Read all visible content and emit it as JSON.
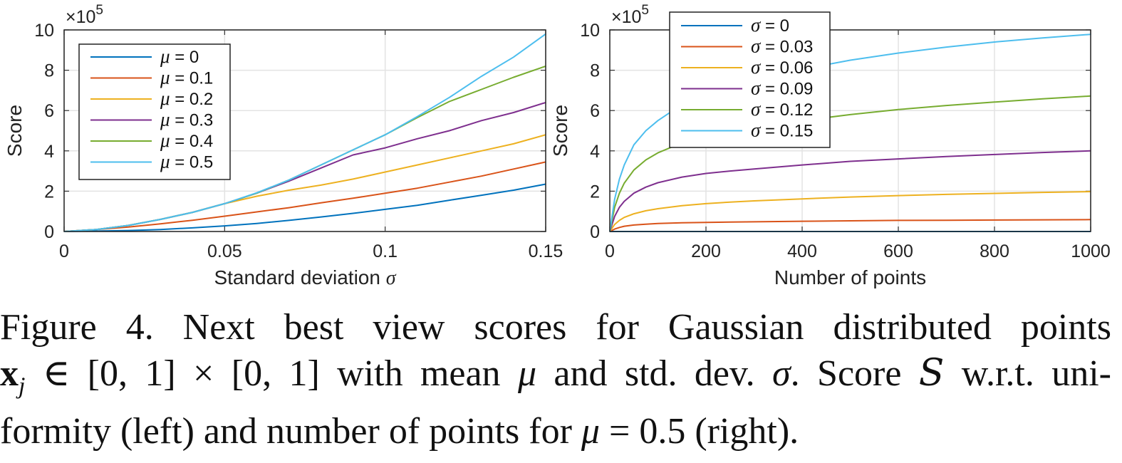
{
  "chart_data": [
    {
      "type": "line",
      "xlabel": "Standard deviation σ",
      "ylabel": "Score",
      "exponent_label": "×10^5",
      "xlim": [
        0,
        0.15
      ],
      "ylim": [
        0,
        10
      ],
      "xticks": [
        "0",
        "0.05",
        "0.1",
        "0.15"
      ],
      "yticks": [
        "0",
        "2",
        "4",
        "6",
        "8",
        "10"
      ],
      "grid": true,
      "legend_placement": "top-left",
      "x": [
        0,
        0.01,
        0.02,
        0.03,
        0.04,
        0.05,
        0.06,
        0.07,
        0.08,
        0.09,
        0.1,
        0.11,
        0.12,
        0.13,
        0.14,
        0.15
      ],
      "series": [
        {
          "name": "μ = 0",
          "color": "#0072BD",
          "values": [
            0,
            0.02,
            0.05,
            0.1,
            0.18,
            0.28,
            0.4,
            0.55,
            0.72,
            0.9,
            1.1,
            1.3,
            1.55,
            1.8,
            2.05,
            2.35
          ]
        },
        {
          "name": "μ = 0.1",
          "color": "#D95319",
          "values": [
            0,
            0.1,
            0.22,
            0.38,
            0.56,
            0.76,
            0.97,
            1.18,
            1.42,
            1.65,
            1.9,
            2.15,
            2.45,
            2.75,
            3.1,
            3.45
          ]
        },
        {
          "name": "μ = 0.2",
          "color": "#EDB120",
          "values": [
            0,
            0.1,
            0.3,
            0.6,
            0.95,
            1.38,
            1.75,
            2.05,
            2.3,
            2.6,
            2.95,
            3.3,
            3.65,
            4.0,
            4.35,
            4.8
          ]
        },
        {
          "name": "μ = 0.3",
          "color": "#7E2F8E",
          "values": [
            0,
            0.1,
            0.3,
            0.6,
            0.95,
            1.38,
            1.9,
            2.5,
            3.15,
            3.8,
            4.15,
            4.6,
            5.0,
            5.5,
            5.9,
            6.4
          ]
        },
        {
          "name": "μ = 0.4",
          "color": "#77AC30",
          "values": [
            0,
            0.1,
            0.3,
            0.6,
            0.95,
            1.38,
            1.9,
            2.55,
            3.3,
            4.05,
            4.8,
            5.65,
            6.45,
            7.05,
            7.65,
            8.2
          ]
        },
        {
          "name": "μ = 0.5",
          "color": "#4DBEEE",
          "values": [
            0,
            0.1,
            0.3,
            0.6,
            0.95,
            1.38,
            1.92,
            2.55,
            3.3,
            4.05,
            4.8,
            5.7,
            6.65,
            7.7,
            8.65,
            9.8
          ]
        }
      ]
    },
    {
      "type": "line",
      "xlabel": "Number of points",
      "ylabel": "Score",
      "exponent_label": "×10^5",
      "xlim": [
        0,
        1000
      ],
      "ylim": [
        0,
        10
      ],
      "xticks": [
        "0",
        "200",
        "400",
        "600",
        "800",
        "1000"
      ],
      "yticks": [
        "0",
        "2",
        "4",
        "6",
        "8",
        "10"
      ],
      "grid": true,
      "legend_placement": "top-left",
      "x": [
        0,
        10,
        20,
        30,
        50,
        75,
        100,
        150,
        200,
        250,
        300,
        400,
        500,
        600,
        700,
        800,
        900,
        1000
      ],
      "series": [
        {
          "name": "σ = 0",
          "color": "#0072BD",
          "values": [
            0,
            0,
            0,
            0,
            0,
            0,
            0,
            0,
            0,
            0,
            0,
            0,
            0,
            0,
            0,
            0,
            0,
            0
          ]
        },
        {
          "name": "σ = 0.03",
          "color": "#D95319",
          "values": [
            0,
            0.12,
            0.2,
            0.26,
            0.32,
            0.36,
            0.4,
            0.43,
            0.45,
            0.47,
            0.48,
            0.51,
            0.53,
            0.55,
            0.56,
            0.57,
            0.58,
            0.59
          ]
        },
        {
          "name": "σ = 0.06",
          "color": "#EDB120",
          "values": [
            0,
            0.35,
            0.55,
            0.7,
            0.88,
            1.03,
            1.13,
            1.28,
            1.38,
            1.46,
            1.52,
            1.62,
            1.71,
            1.78,
            1.84,
            1.89,
            1.94,
            1.98
          ]
        },
        {
          "name": "σ = 0.09",
          "color": "#7E2F8E",
          "values": [
            0,
            0.75,
            1.2,
            1.5,
            1.9,
            2.2,
            2.42,
            2.7,
            2.88,
            3.0,
            3.1,
            3.3,
            3.48,
            3.6,
            3.72,
            3.82,
            3.92,
            4.0
          ]
        },
        {
          "name": "σ = 0.12",
          "color": "#77AC30",
          "values": [
            0,
            1.2,
            1.9,
            2.4,
            3.05,
            3.55,
            3.9,
            4.4,
            4.7,
            4.95,
            5.15,
            5.5,
            5.8,
            6.05,
            6.25,
            6.42,
            6.58,
            6.72
          ]
        },
        {
          "name": "σ = 0.15",
          "color": "#4DBEEE",
          "values": [
            0,
            1.6,
            2.6,
            3.3,
            4.3,
            5.0,
            5.5,
            6.3,
            6.8,
            7.2,
            7.5,
            8.05,
            8.5,
            8.85,
            9.15,
            9.4,
            9.6,
            9.78
          ]
        }
      ]
    }
  ],
  "caption": {
    "line1": "Figure 4. Next best view scores for Gaussian distributed points",
    "line2a": "x",
    "line2b": "j",
    "line2c": " ∈ [0, 1] × [0, 1] with mean ",
    "line2d": "μ",
    "line2e": " and std. dev. ",
    "line2f": "σ",
    "line2g": ". Score ",
    "line2h": "S",
    "line2i": " w.r.t. uni-",
    "line3a": "formity (left) and number of points for ",
    "line3b": "μ",
    "line3c": " = 0.5 (right)."
  }
}
